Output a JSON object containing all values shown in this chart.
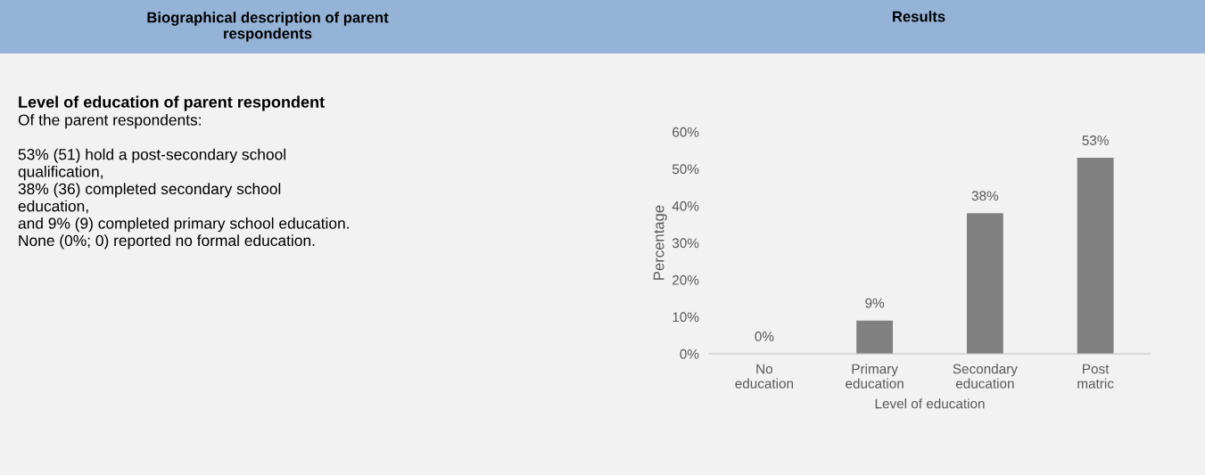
{
  "chart_data": {
    "type": "bar",
    "categories": [
      "No\neducation",
      "Primary\neducation",
      "Secondary\neducation",
      "Post\nmatric"
    ],
    "values": [
      0,
      9,
      38,
      53
    ],
    "value_labels": [
      "0%",
      "9%",
      "38%",
      "53%"
    ],
    "color": "#808080",
    "ylim": [
      0,
      60
    ],
    "yticks": [
      {
        "value": 0,
        "label": "0%"
      },
      {
        "value": 10,
        "label": "10%"
      },
      {
        "value": 20,
        "label": "20%"
      },
      {
        "value": 30,
        "label": "30%"
      },
      {
        "value": 40,
        "label": "40%"
      },
      {
        "value": 50,
        "label": "50%"
      },
      {
        "value": 60,
        "label": "60%"
      }
    ],
    "ylabel": "Percentage",
    "xlabel": "Level of education",
    "grid": false,
    "annotations": [
      "Biographical description of parent\nrespondents",
      "Results",
      "Level of education of parent respondent",
      "Of the parent respondents:\n\n53% (51) hold a post-secondary school\nqualification,\n38% (36) completed secondary school\neducation,\nand 9% (9) completed primary school education.\nNone (0%; 0) reported no formal education."
    ]
  }
}
